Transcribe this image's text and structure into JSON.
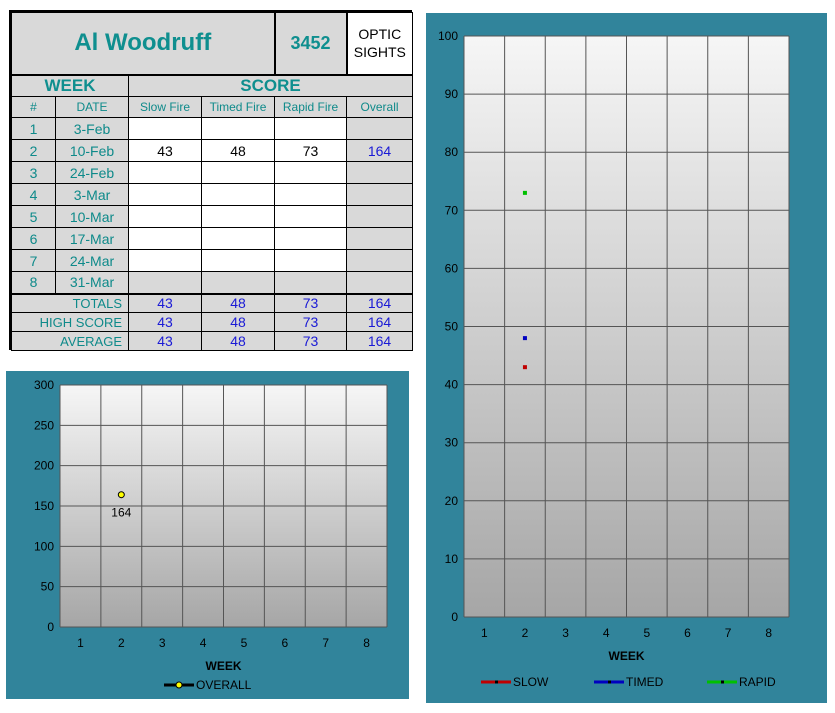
{
  "sheet": {
    "shooter_name": "Al Woodruff",
    "shooter_id": "3452",
    "category_line1": "OPTIC",
    "category_line2": "SIGHTS",
    "header_week": "WEEK",
    "header_score": "SCORE",
    "col_num": "#",
    "col_date": "DATE",
    "col_slow": "Slow Fire",
    "col_timed": "Timed Fire",
    "col_rapid": "Rapid Fire",
    "col_overall": "Overall",
    "rows": [
      {
        "num": "1",
        "date": "3-Feb",
        "slow": "",
        "timed": "",
        "rapid": "",
        "overall": ""
      },
      {
        "num": "2",
        "date": "10-Feb",
        "slow": "43",
        "timed": "48",
        "rapid": "73",
        "overall": "164"
      },
      {
        "num": "3",
        "date": "24-Feb",
        "slow": "",
        "timed": "",
        "rapid": "",
        "overall": ""
      },
      {
        "num": "4",
        "date": "3-Mar",
        "slow": "",
        "timed": "",
        "rapid": "",
        "overall": ""
      },
      {
        "num": "5",
        "date": "10-Mar",
        "slow": "",
        "timed": "",
        "rapid": "",
        "overall": ""
      },
      {
        "num": "6",
        "date": "17-Mar",
        "slow": "",
        "timed": "",
        "rapid": "",
        "overall": ""
      },
      {
        "num": "7",
        "date": "24-Mar",
        "slow": "",
        "timed": "",
        "rapid": "",
        "overall": ""
      },
      {
        "num": "8",
        "date": "31-Mar",
        "slow": "",
        "timed": "",
        "rapid": "",
        "overall": ""
      }
    ],
    "summary": [
      {
        "label": "TOTALS",
        "slow": "43",
        "timed": "48",
        "rapid": "73",
        "overall": "164"
      },
      {
        "label": "HIGH SCORE",
        "slow": "43",
        "timed": "48",
        "rapid": "73",
        "overall": "164"
      },
      {
        "label": "AVERAGE",
        "slow": "43",
        "timed": "48",
        "rapid": "73",
        "overall": "164"
      }
    ]
  },
  "colors": {
    "frame": "#31849b",
    "slow": "#c00000",
    "timed": "#0000c0",
    "rapid": "#00c000",
    "overall_marker": "#ffff00"
  },
  "chart_data": [
    {
      "type": "scatter",
      "xlabel": "WEEK",
      "ylabel": "",
      "categories": [
        "1",
        "2",
        "3",
        "4",
        "5",
        "6",
        "7",
        "8"
      ],
      "xlim": [
        1,
        8
      ],
      "ylim": [
        0,
        300
      ],
      "yticks": [
        0,
        50,
        100,
        150,
        200,
        250,
        300
      ],
      "grid": true,
      "legend": "bottom",
      "series": [
        {
          "name": "OVERALL",
          "points": [
            {
              "x": 2,
              "y": 164,
              "label": "164"
            }
          ]
        }
      ]
    },
    {
      "type": "scatter",
      "xlabel": "WEEK",
      "ylabel": "",
      "categories": [
        "1",
        "2",
        "3",
        "4",
        "5",
        "6",
        "7",
        "8"
      ],
      "xlim": [
        1,
        8
      ],
      "ylim": [
        0,
        100
      ],
      "yticks": [
        0,
        10,
        20,
        30,
        40,
        50,
        60,
        70,
        80,
        90,
        100
      ],
      "grid": true,
      "legend": "bottom",
      "series": [
        {
          "name": "SLOW",
          "points": [
            {
              "x": 2,
              "y": 43
            }
          ]
        },
        {
          "name": "TIMED",
          "points": [
            {
              "x": 2,
              "y": 48
            }
          ]
        },
        {
          "name": "RAPID",
          "points": [
            {
              "x": 2,
              "y": 73
            }
          ]
        }
      ]
    }
  ]
}
